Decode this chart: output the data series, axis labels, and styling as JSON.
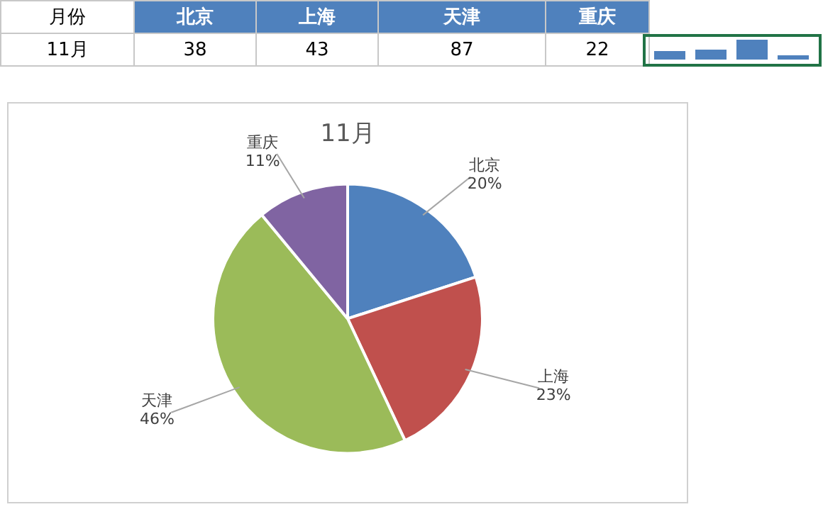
{
  "chart_data": {
    "type": "pie",
    "title": "11月",
    "xlabel": "月份",
    "categories": [
      "北京",
      "上海",
      "天津",
      "重庆"
    ],
    "values": [
      20,
      23,
      46,
      11
    ],
    "colors": [
      "#4f81bd",
      "#c0504d",
      "#9bbb59",
      "#8064a2"
    ],
    "value_labels": [
      "20%",
      "23%",
      "46%",
      "11%"
    ],
    "annotations": [
      "38",
      "43",
      "87",
      "22"
    ],
    "legend": false
  }
}
